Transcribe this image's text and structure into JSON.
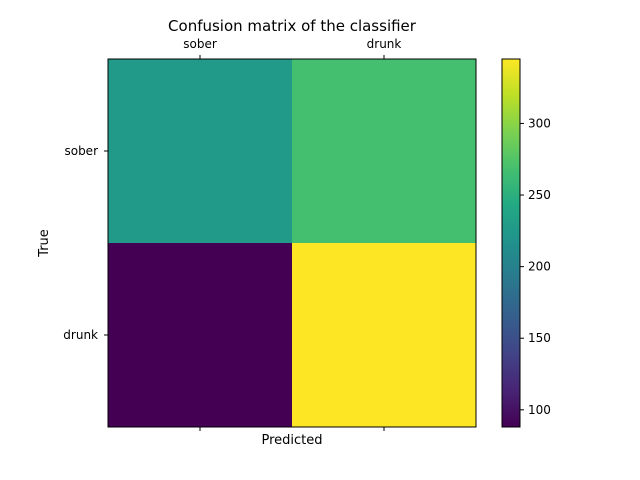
{
  "chart_data": {
    "type": "heatmap",
    "title": "Confusion matrix of the classifier",
    "xlabel": "Predicted",
    "ylabel": "True",
    "x_categories": [
      "sober",
      "drunk"
    ],
    "y_categories": [
      "sober",
      "drunk"
    ],
    "values": [
      [
        227,
        268
      ],
      [
        88,
        345
      ]
    ],
    "colormap": "viridis",
    "colorbar": {
      "vmin": 88,
      "vmax": 345,
      "ticks": [
        100,
        150,
        200,
        250,
        300
      ],
      "tick_labels": [
        "100",
        "150",
        "200",
        "250",
        "300"
      ]
    },
    "x_tick_position": "top",
    "grid": false
  }
}
